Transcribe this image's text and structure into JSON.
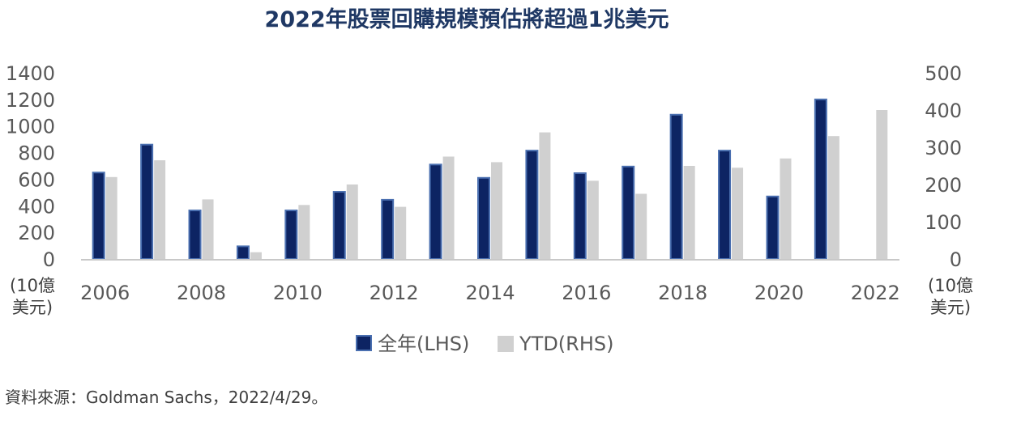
{
  "chart_data": {
    "type": "bar",
    "title": "2022年股票回購規模預估將超過1兆美元",
    "categories": [
      "2006",
      "2007",
      "2008",
      "2009",
      "2010",
      "2011",
      "2012",
      "2013",
      "2014",
      "2015",
      "2016",
      "2017",
      "2018",
      "2019",
      "2020",
      "2021",
      "2022"
    ],
    "x_tick_labels": [
      "2006",
      "2008",
      "2010",
      "2012",
      "2014",
      "2016",
      "2018",
      "2020",
      "2022"
    ],
    "series": [
      {
        "name": "全年(LHS)",
        "axis": "left",
        "color": "#0d2463",
        "border": "#4a6fb0",
        "values": [
          650,
          860,
          365,
          95,
          365,
          505,
          445,
          710,
          610,
          815,
          645,
          695,
          1085,
          815,
          470,
          1200,
          null
        ]
      },
      {
        "name": "YTD(RHS)",
        "axis": "right",
        "color": "#d0d0d0",
        "values": [
          220,
          265,
          160,
          18,
          145,
          200,
          140,
          275,
          260,
          340,
          210,
          175,
          250,
          245,
          270,
          330,
          400
        ]
      }
    ],
    "y_left": {
      "min": 0,
      "max": 1400,
      "ticks": [
        "0",
        "200",
        "400",
        "600",
        "800",
        "1000",
        "1200",
        "1400"
      ],
      "unit_line1": "(10億",
      "unit_line2": "美元)"
    },
    "y_right": {
      "min": 0,
      "max": 500,
      "ticks": [
        "0",
        "100",
        "200",
        "300",
        "400",
        "500"
      ],
      "unit_line1": "(10億",
      "unit_line2": "美元)"
    },
    "legend_position": "bottom-center",
    "grid": false
  },
  "source": "資料來源：Goldman Sachs，2022/4/29。"
}
